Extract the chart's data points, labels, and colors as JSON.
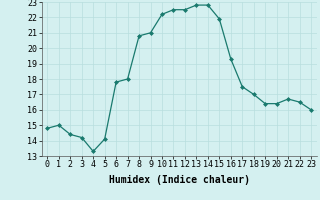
{
  "x": [
    0,
    1,
    2,
    3,
    4,
    5,
    6,
    7,
    8,
    9,
    10,
    11,
    12,
    13,
    14,
    15,
    16,
    17,
    18,
    19,
    20,
    21,
    22,
    23
  ],
  "y": [
    14.8,
    15.0,
    14.4,
    14.2,
    13.3,
    14.1,
    17.8,
    18.0,
    20.8,
    21.0,
    22.2,
    22.5,
    22.5,
    22.8,
    22.8,
    21.9,
    19.3,
    17.5,
    17.0,
    16.4,
    16.4,
    16.7,
    16.5,
    16.0
  ],
  "xlabel": "Humidex (Indice chaleur)",
  "ylim": [
    13,
    23
  ],
  "xlim": [
    -0.5,
    23.5
  ],
  "yticks": [
    13,
    14,
    15,
    16,
    17,
    18,
    19,
    20,
    21,
    22,
    23
  ],
  "xticks": [
    0,
    1,
    2,
    3,
    4,
    5,
    6,
    7,
    8,
    9,
    10,
    11,
    12,
    13,
    14,
    15,
    16,
    17,
    18,
    19,
    20,
    21,
    22,
    23
  ],
  "line_color": "#1a7a6e",
  "marker_color": "#1a7a6e",
  "bg_color": "#d4f0f0",
  "grid_color": "#b8dede",
  "label_fontsize": 7,
  "tick_fontsize": 6
}
